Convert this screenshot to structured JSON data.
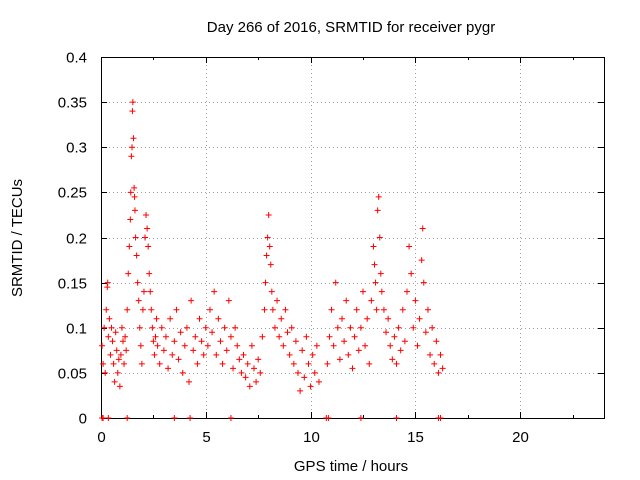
{
  "chart_data": {
    "type": "scatter",
    "title": "Day 266 of 2016, SRMTID for receiver pygr",
    "xlabel": "GPS time / hours",
    "ylabel": "SRMTID / TECUs",
    "xlim": [
      0,
      24
    ],
    "ylim": [
      0,
      0.4
    ],
    "xticks": [
      0,
      5,
      10,
      15,
      20
    ],
    "yticks": [
      0,
      0.05,
      0.1,
      0.15,
      0.2,
      0.25,
      0.3,
      0.35,
      0.4
    ],
    "xtick_labels": [
      "0",
      "5",
      "10",
      "15",
      "20"
    ],
    "ytick_labels": [
      "0",
      "0.05",
      "0.1",
      "0.15",
      "0.2",
      "0.25",
      "0.3",
      "0.35",
      "0.4"
    ],
    "grid": true,
    "marker": "+",
    "color": "#ff0000",
    "series": [
      {
        "name": "SRMTID",
        "points": [
          [
            0.05,
            0.0
          ],
          [
            0.1,
            0.0
          ],
          [
            0.35,
            0.0
          ],
          [
            1.25,
            0.0
          ],
          [
            3.5,
            0.0
          ],
          [
            4.25,
            0.0
          ],
          [
            6.2,
            0.0
          ],
          [
            10.75,
            0.0
          ],
          [
            10.85,
            0.0
          ],
          [
            12.4,
            0.0
          ],
          [
            14.1,
            0.0
          ],
          [
            16.1,
            0.0
          ],
          [
            16.2,
            0.0
          ],
          [
            0.05,
            0.08
          ],
          [
            0.1,
            0.06
          ],
          [
            0.15,
            0.1
          ],
          [
            0.2,
            0.05
          ],
          [
            0.25,
            0.12
          ],
          [
            0.3,
            0.145
          ],
          [
            0.32,
            0.15
          ],
          [
            0.35,
            0.09
          ],
          [
            0.4,
            0.11
          ],
          [
            0.45,
            0.07
          ],
          [
            0.5,
            0.1
          ],
          [
            0.55,
            0.085
          ],
          [
            0.6,
            0.06
          ],
          [
            0.65,
            0.04
          ],
          [
            0.7,
            0.095
          ],
          [
            0.75,
            0.075
          ],
          [
            0.8,
            0.05
          ],
          [
            0.85,
            0.065
          ],
          [
            0.9,
            0.035
          ],
          [
            0.95,
            0.07
          ],
          [
            1.0,
            0.1
          ],
          [
            1.05,
            0.085
          ],
          [
            1.1,
            0.06
          ],
          [
            1.15,
            0.09
          ],
          [
            1.2,
            0.075
          ],
          [
            1.25,
            0.12
          ],
          [
            1.3,
            0.16
          ],
          [
            1.35,
            0.19
          ],
          [
            1.4,
            0.22
          ],
          [
            1.42,
            0.25
          ],
          [
            1.45,
            0.29
          ],
          [
            1.48,
            0.3
          ],
          [
            1.5,
            0.34
          ],
          [
            1.52,
            0.35
          ],
          [
            1.55,
            0.31
          ],
          [
            1.58,
            0.255
          ],
          [
            1.6,
            0.245
          ],
          [
            1.62,
            0.23
          ],
          [
            1.65,
            0.2
          ],
          [
            1.7,
            0.18
          ],
          [
            1.75,
            0.15
          ],
          [
            1.8,
            0.13
          ],
          [
            1.85,
            0.1
          ],
          [
            1.9,
            0.08
          ],
          [
            1.95,
            0.06
          ],
          [
            2.0,
            0.12
          ],
          [
            2.05,
            0.14
          ],
          [
            2.1,
            0.2
          ],
          [
            2.15,
            0.225
          ],
          [
            2.2,
            0.21
          ],
          [
            2.25,
            0.19
          ],
          [
            2.3,
            0.16
          ],
          [
            2.35,
            0.14
          ],
          [
            2.4,
            0.12
          ],
          [
            2.45,
            0.1
          ],
          [
            2.5,
            0.085
          ],
          [
            2.55,
            0.07
          ],
          [
            2.6,
            0.09
          ],
          [
            2.65,
            0.11
          ],
          [
            2.7,
            0.08
          ],
          [
            2.8,
            0.06
          ],
          [
            2.9,
            0.1
          ],
          [
            3.0,
            0.075
          ],
          [
            3.1,
            0.09
          ],
          [
            3.2,
            0.055
          ],
          [
            3.3,
            0.11
          ],
          [
            3.4,
            0.07
          ],
          [
            3.5,
            0.085
          ],
          [
            3.6,
            0.12
          ],
          [
            3.7,
            0.065
          ],
          [
            3.8,
            0.095
          ],
          [
            3.9,
            0.05
          ],
          [
            4.0,
            0.08
          ],
          [
            4.1,
            0.1
          ],
          [
            4.2,
            0.04
          ],
          [
            4.3,
            0.13
          ],
          [
            4.4,
            0.075
          ],
          [
            4.5,
            0.09
          ],
          [
            4.6,
            0.06
          ],
          [
            4.7,
            0.11
          ],
          [
            4.8,
            0.085
          ],
          [
            4.9,
            0.07
          ],
          [
            5.0,
            0.1
          ],
          [
            5.1,
            0.08
          ],
          [
            5.2,
            0.12
          ],
          [
            5.3,
            0.095
          ],
          [
            5.4,
            0.14
          ],
          [
            5.5,
            0.07
          ],
          [
            5.6,
            0.11
          ],
          [
            5.7,
            0.085
          ],
          [
            5.8,
            0.06
          ],
          [
            5.9,
            0.1
          ],
          [
            6.0,
            0.075
          ],
          [
            6.1,
            0.13
          ],
          [
            6.2,
            0.09
          ],
          [
            6.3,
            0.055
          ],
          [
            6.4,
            0.1
          ],
          [
            6.5,
            0.08
          ],
          [
            6.6,
            0.065
          ],
          [
            6.7,
            0.05
          ],
          [
            6.8,
            0.07
          ],
          [
            6.9,
            0.045
          ],
          [
            7.0,
            0.06
          ],
          [
            7.1,
            0.035
          ],
          [
            7.2,
            0.08
          ],
          [
            7.3,
            0.055
          ],
          [
            7.4,
            0.04
          ],
          [
            7.5,
            0.065
          ],
          [
            7.6,
            0.05
          ],
          [
            7.7,
            0.09
          ],
          [
            7.8,
            0.12
          ],
          [
            7.85,
            0.15
          ],
          [
            7.9,
            0.18
          ],
          [
            7.95,
            0.2
          ],
          [
            8.0,
            0.225
          ],
          [
            8.05,
            0.19
          ],
          [
            8.1,
            0.17
          ],
          [
            8.15,
            0.14
          ],
          [
            8.2,
            0.12
          ],
          [
            8.3,
            0.1
          ],
          [
            8.4,
            0.13
          ],
          [
            8.5,
            0.09
          ],
          [
            8.6,
            0.11
          ],
          [
            8.7,
            0.08
          ],
          [
            8.8,
            0.12
          ],
          [
            8.9,
            0.095
          ],
          [
            9.0,
            0.07
          ],
          [
            9.1,
            0.1
          ],
          [
            9.2,
            0.06
          ],
          [
            9.3,
            0.085
          ],
          [
            9.4,
            0.05
          ],
          [
            9.5,
            0.03
          ],
          [
            9.6,
            0.075
          ],
          [
            9.7,
            0.045
          ],
          [
            9.8,
            0.09
          ],
          [
            9.9,
            0.06
          ],
          [
            10.0,
            0.035
          ],
          [
            10.1,
            0.07
          ],
          [
            10.2,
            0.05
          ],
          [
            10.3,
            0.08
          ],
          [
            10.4,
            0.04
          ],
          [
            10.8,
            0.06
          ],
          [
            10.9,
            0.09
          ],
          [
            11.0,
            0.12
          ],
          [
            11.1,
            0.08
          ],
          [
            11.2,
            0.15
          ],
          [
            11.3,
            0.1
          ],
          [
            11.4,
            0.065
          ],
          [
            11.5,
            0.11
          ],
          [
            11.6,
            0.085
          ],
          [
            11.7,
            0.13
          ],
          [
            11.8,
            0.07
          ],
          [
            11.9,
            0.1
          ],
          [
            12.0,
            0.055
          ],
          [
            12.1,
            0.09
          ],
          [
            12.2,
            0.12
          ],
          [
            12.3,
            0.075
          ],
          [
            12.4,
            0.1
          ],
          [
            12.5,
            0.14
          ],
          [
            12.6,
            0.08
          ],
          [
            12.7,
            0.11
          ],
          [
            12.8,
            0.06
          ],
          [
            12.9,
            0.13
          ],
          [
            13.0,
            0.19
          ],
          [
            13.05,
            0.17
          ],
          [
            13.1,
            0.15
          ],
          [
            13.15,
            0.12
          ],
          [
            13.2,
            0.23
          ],
          [
            13.25,
            0.245
          ],
          [
            13.3,
            0.2
          ],
          [
            13.35,
            0.16
          ],
          [
            13.4,
            0.14
          ],
          [
            13.5,
            0.12
          ],
          [
            13.6,
            0.095
          ],
          [
            13.7,
            0.11
          ],
          [
            13.8,
            0.08
          ],
          [
            13.9,
            0.065
          ],
          [
            14.0,
            0.09
          ],
          [
            14.1,
            0.06
          ],
          [
            14.2,
            0.1
          ],
          [
            14.3,
            0.075
          ],
          [
            14.4,
            0.12
          ],
          [
            14.5,
            0.085
          ],
          [
            14.6,
            0.14
          ],
          [
            14.7,
            0.19
          ],
          [
            14.8,
            0.16
          ],
          [
            14.9,
            0.1
          ],
          [
            15.0,
            0.13
          ],
          [
            15.1,
            0.08
          ],
          [
            15.2,
            0.11
          ],
          [
            15.3,
            0.175
          ],
          [
            15.35,
            0.21
          ],
          [
            15.4,
            0.15
          ],
          [
            15.5,
            0.095
          ],
          [
            15.6,
            0.12
          ],
          [
            15.7,
            0.07
          ],
          [
            15.8,
            0.1
          ],
          [
            15.9,
            0.06
          ],
          [
            16.0,
            0.085
          ],
          [
            16.1,
            0.05
          ],
          [
            16.2,
            0.07
          ],
          [
            16.3,
            0.055
          ]
        ]
      }
    ]
  }
}
